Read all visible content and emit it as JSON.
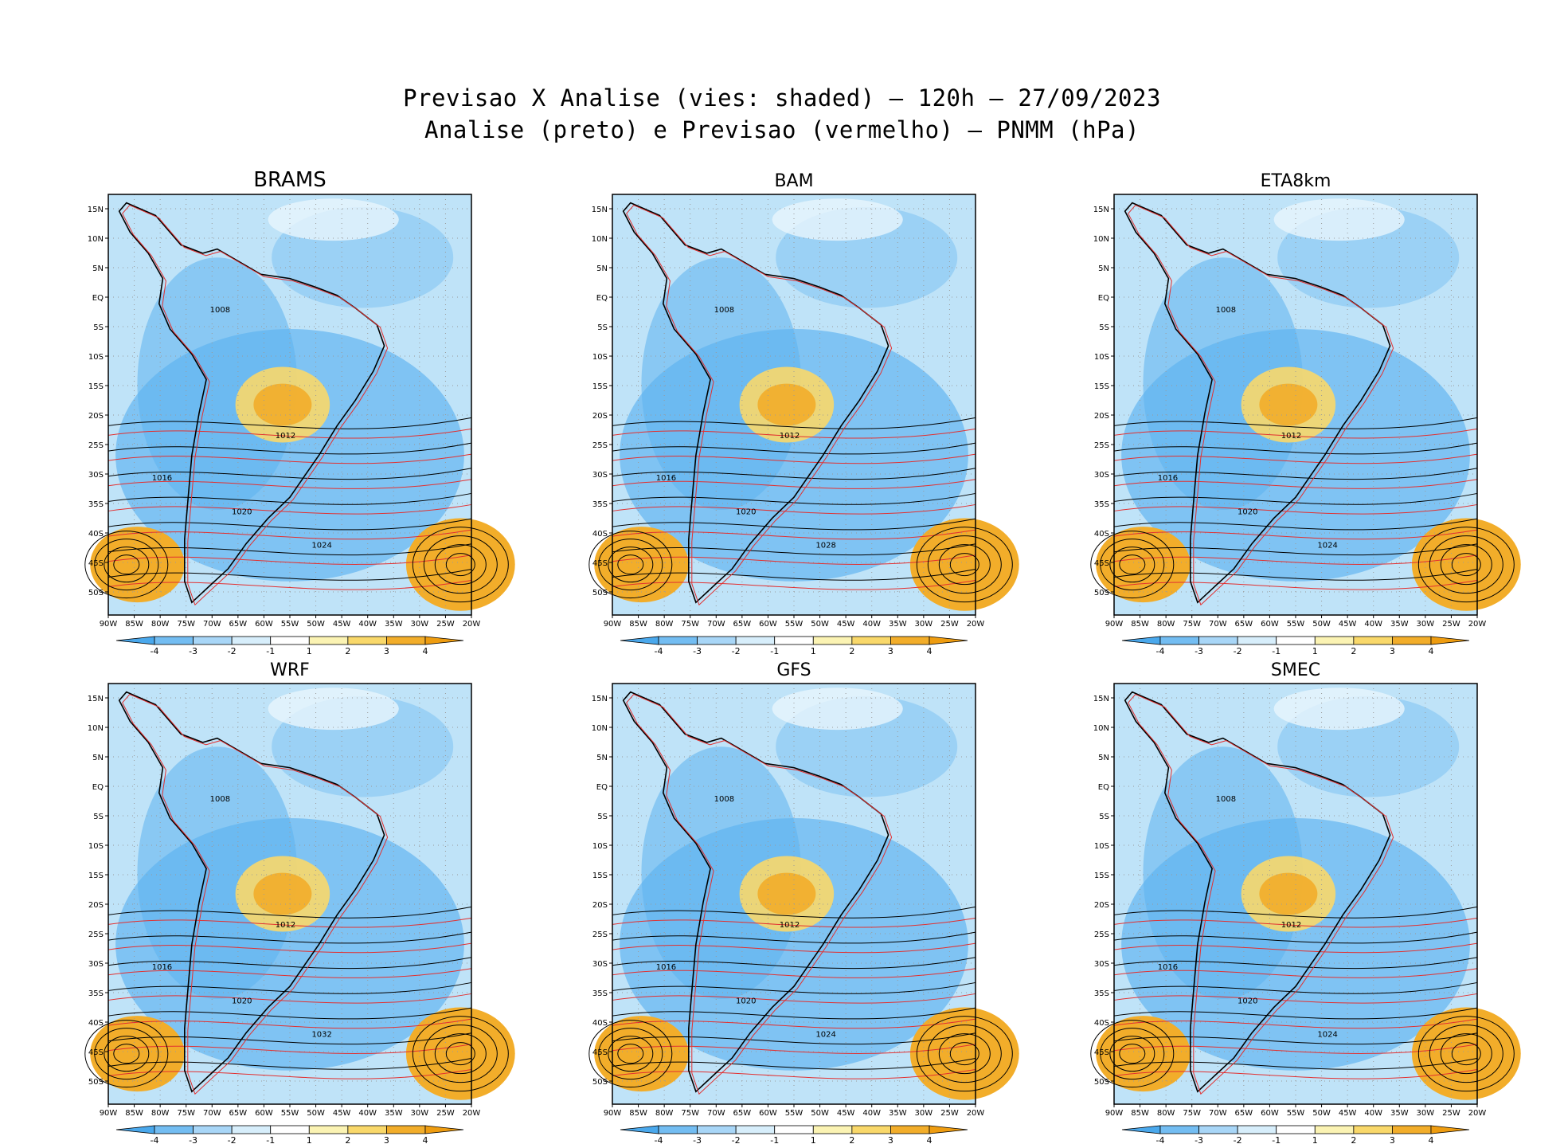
{
  "header": {
    "title_line1": "Previsao X Analise (vies: shaded) — 120h — 27/09/2023",
    "title_line2": "Analise (preto) e Previsao (vermelho) — PNMM (hPa)"
  },
  "panels": [
    {
      "title": "BRAMS",
      "lows": [
        "1008",
        "1012"
      ],
      "highs": [
        "1016",
        "1020",
        "1024"
      ]
    },
    {
      "title": "BAM",
      "lows": [
        "1008",
        "1012"
      ],
      "highs": [
        "1016",
        "1020",
        "1028"
      ]
    },
    {
      "title": "ETA8km",
      "lows": [
        "1008",
        "1012"
      ],
      "highs": [
        "1016",
        "1020",
        "1024"
      ]
    },
    {
      "title": "WRF",
      "lows": [
        "1008",
        "1012"
      ],
      "highs": [
        "1016",
        "1020",
        "1032"
      ]
    },
    {
      "title": "GFS",
      "lows": [
        "1008",
        "1012"
      ],
      "highs": [
        "1016",
        "1020",
        "1024"
      ]
    },
    {
      "title": "SMEC",
      "lows": [
        "1008",
        "1012"
      ],
      "highs": [
        "1016",
        "1020",
        "1024"
      ]
    }
  ],
  "axes": {
    "lat_labels": [
      "15N",
      "10N",
      "5N",
      "EQ",
      "5S",
      "10S",
      "15S",
      "20S",
      "25S",
      "30S",
      "35S",
      "40S",
      "45S",
      "50S"
    ],
    "lon_labels": [
      "90W",
      "85W",
      "80W",
      "75W",
      "70W",
      "65W",
      "60W",
      "55W",
      "50W",
      "45W",
      "40W",
      "35W",
      "30W",
      "25W",
      "20W"
    ]
  },
  "colorbar": {
    "labels": [
      "-4",
      "-3",
      "-2",
      "-1",
      "1",
      "2",
      "3",
      "4"
    ],
    "colors": [
      "#4aa8ec",
      "#73bdf2",
      "#a8d6f7",
      "#d7eefb",
      "#ffffff",
      "#fbf3b3",
      "#f9d86a",
      "#f2ad2a",
      "#ee9c10"
    ]
  },
  "colors": {
    "analysis": "#000000",
    "forecast": "#e23030"
  }
}
